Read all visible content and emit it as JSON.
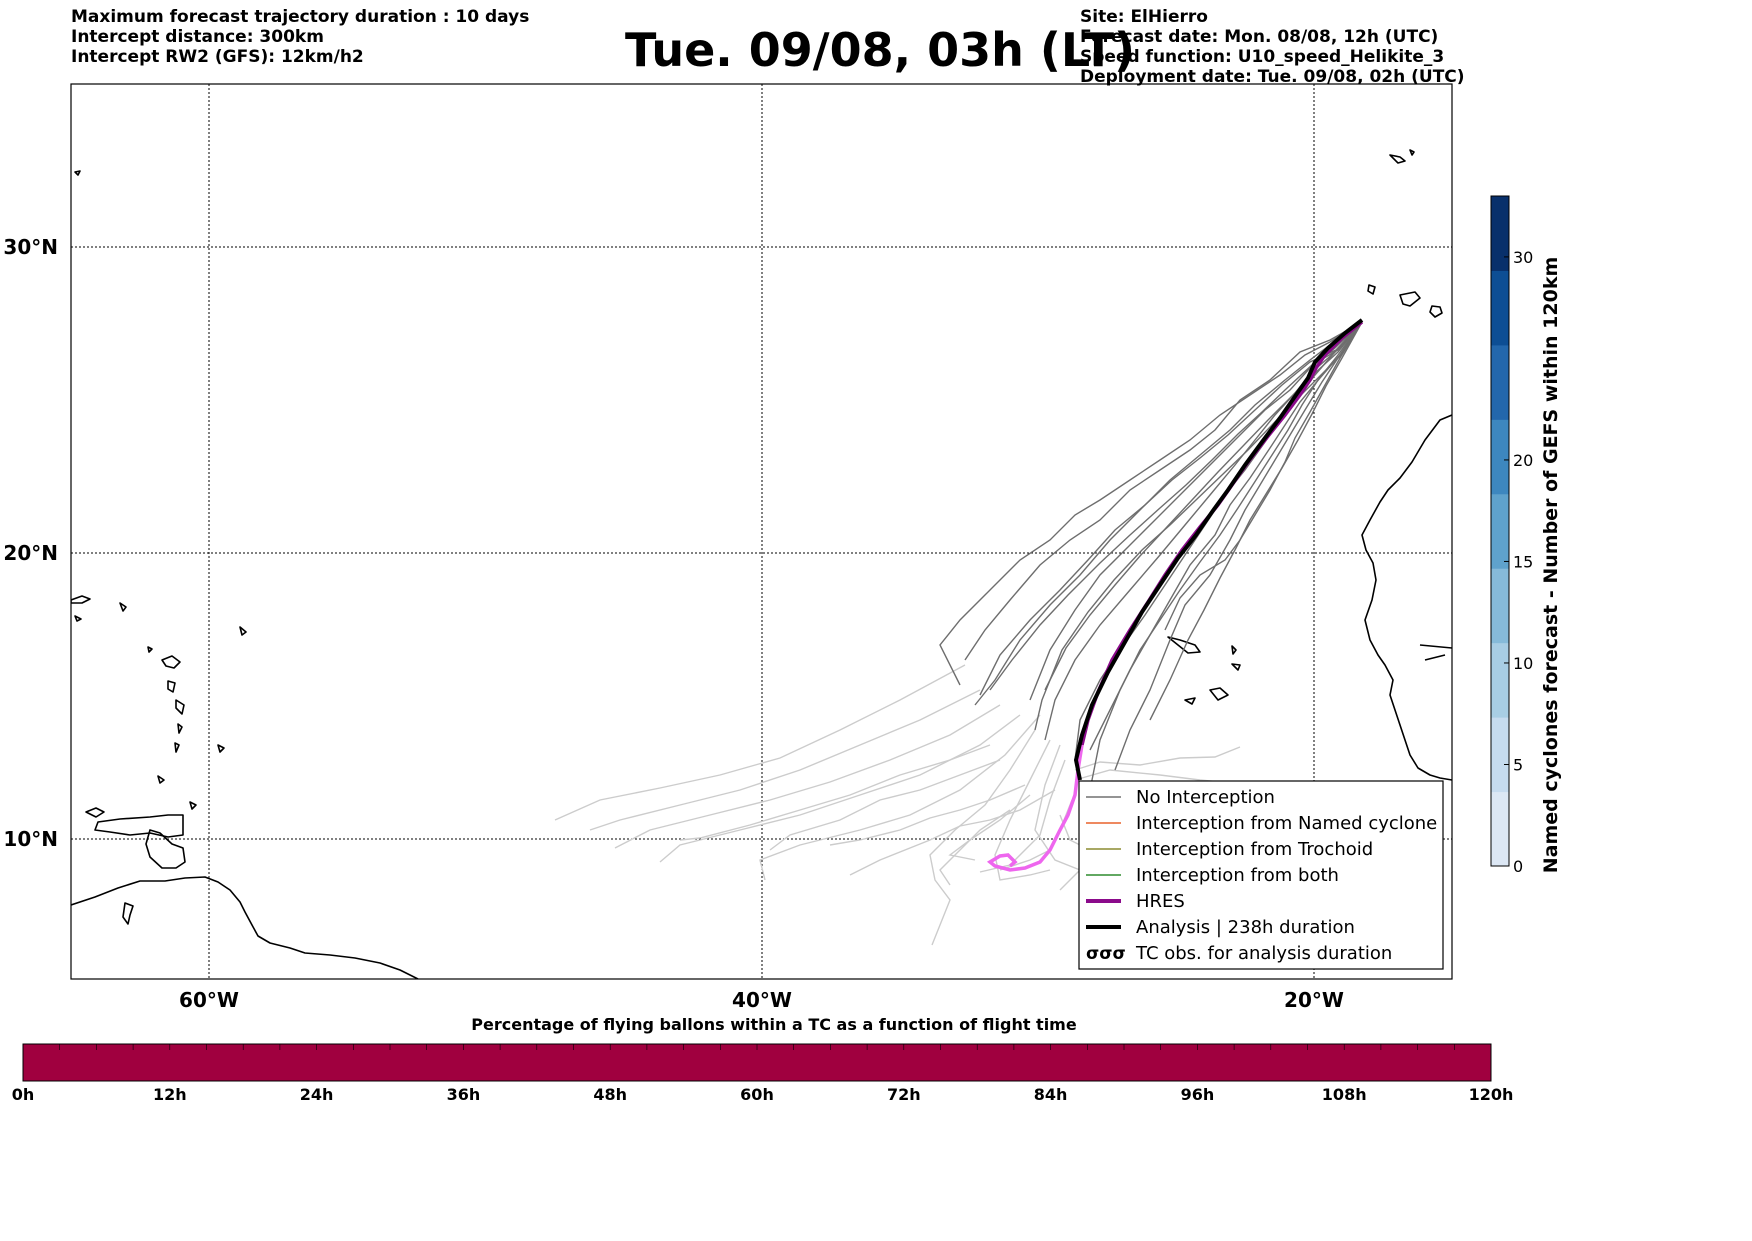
{
  "header": {
    "left_lines": [
      "Maximum forecast trajectory duration : 10 days",
      "Intercept distance: 300km",
      "Intercept RW2 (GFS):  12km/h2"
    ],
    "title": "Tue. 09/08, 03h (LT)",
    "right_lines": [
      "Site: ElHierro",
      "Forecast date: Mon. 08/08, 12h (UTC)",
      "Speed function: U10_speed_Helikite_3",
      "Deployment date: Tue. 09/08, 02h (UTC)"
    ]
  },
  "map": {
    "lon_range": [
      -65,
      -15
    ],
    "lat_range": [
      5.5,
      34.8
    ],
    "lon_ticks": [
      {
        "lon": -60,
        "label": "60°W"
      },
      {
        "lon": -40,
        "label": "40°W"
      },
      {
        "lon": -20,
        "label": "20°W"
      }
    ],
    "lat_ticks": [
      {
        "lat": 30,
        "label": "30°N"
      },
      {
        "lat": 20,
        "label": "20°N"
      },
      {
        "lat": 10,
        "label": "10°N"
      }
    ]
  },
  "legend": {
    "items": [
      {
        "label": "No Interception",
        "color": "#707070",
        "style": "thin"
      },
      {
        "label": "Interception from Named cyclone",
        "color": "#e8622c",
        "style": "thin"
      },
      {
        "label": "Interception from Trochoid",
        "color": "#8c8c30",
        "style": "thin"
      },
      {
        "label": "Interception from both",
        "color": "#2e8b2e",
        "style": "thin"
      },
      {
        "label": "HRES",
        "color": "#8b0a8b",
        "style": "thick"
      },
      {
        "label": "Analysis | 238h duration",
        "color": "#000000",
        "style": "thick"
      },
      {
        "label": "TC obs. for analysis duration",
        "color": "#000000",
        "style": "symbol",
        "symbol": "σσσ"
      }
    ]
  },
  "colorbar_right": {
    "label": "Named cyclones forecast - Number of GEFS within 120km",
    "min": 0,
    "max": 33,
    "ticks": [
      0,
      5,
      10,
      15,
      20,
      30
    ],
    "colors": [
      "#dce7f4",
      "#c6dbef",
      "#a8cde4",
      "#86bad9",
      "#5fa2cc",
      "#3d87bf",
      "#2367ac",
      "#0d4e94",
      "#08306b"
    ]
  },
  "colorbar_bottom": {
    "label": "Percentage of flying ballons within a TC as a function of flight time",
    "color": "#a0003f",
    "ticks": [
      "0h",
      "12h",
      "24h",
      "36h",
      "48h",
      "60h",
      "72h",
      "84h",
      "96h",
      "108h",
      "120h"
    ]
  }
}
